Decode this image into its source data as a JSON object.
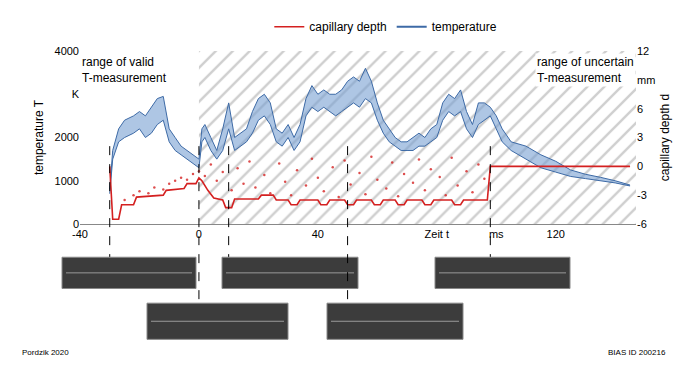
{
  "chart_data": {
    "type": "line",
    "xlim": [
      -40,
      147
    ],
    "xticks": [
      -40,
      0,
      40,
      {
        "value": 80,
        "label": "Zeit t"
      },
      {
        "value": 100,
        "label": "ms"
      },
      120
    ],
    "ylim": [
      0,
      4000
    ],
    "yticks": [
      0,
      1000,
      2000,
      {
        "value": 3000,
        "label": "K"
      },
      4000
    ],
    "y2lim": [
      -6,
      12
    ],
    "y2ticks": [
      -6,
      -3,
      0,
      3,
      6,
      {
        "value": 9,
        "label": "mm"
      },
      12
    ],
    "y_label": "temperature T",
    "y2_label": "capillary depth d",
    "grid": false,
    "legend": "top",
    "series": [
      {
        "name": "temperature",
        "color": "#3d6aa6",
        "x": [
          -30,
          -29,
          -27,
          -25,
          -22,
          -20,
          -18,
          -16,
          -14,
          -12,
          -10,
          -8,
          -6,
          -4,
          -2,
          0,
          1,
          2,
          4,
          6,
          8,
          10,
          12,
          14,
          16,
          18,
          20,
          22,
          24,
          26,
          28,
          30,
          32,
          34,
          36,
          38,
          40,
          42,
          44,
          46,
          48,
          50,
          52,
          54,
          56,
          58,
          60,
          62,
          64,
          66,
          68,
          70,
          72,
          74,
          76,
          78,
          80,
          82,
          84,
          86,
          88,
          90,
          92,
          94,
          96,
          98,
          100,
          102,
          105,
          110,
          115,
          120,
          125,
          130,
          135,
          140,
          145
        ],
        "lower": [
          700,
          1500,
          1900,
          2000,
          2100,
          2200,
          2000,
          2100,
          2300,
          2400,
          1900,
          1700,
          1600,
          1500,
          1400,
          1300,
          1900,
          2000,
          1700,
          1500,
          1700,
          2200,
          1700,
          1800,
          1900,
          2100,
          2400,
          2500,
          2300,
          1900,
          1800,
          2000,
          1700,
          1900,
          2500,
          2700,
          2600,
          2700,
          2600,
          2500,
          2600,
          2700,
          2800,
          2700,
          2900,
          2800,
          2400,
          2100,
          1900,
          1800,
          1700,
          1700,
          1700,
          1800,
          1800,
          1900,
          2000,
          2400,
          2600,
          2500,
          2600,
          2200,
          2000,
          2300,
          2400,
          2500,
          2200,
          1900,
          1700,
          1500,
          1300,
          1200,
          1100,
          1050,
          1000,
          950,
          880
        ],
        "upper": [
          800,
          1700,
          2200,
          2400,
          2500,
          2600,
          2500,
          2700,
          2900,
          2950,
          2200,
          2000,
          1800,
          1700,
          1600,
          1500,
          2200,
          2300,
          2000,
          1700,
          2200,
          2800,
          2000,
          2100,
          2200,
          2600,
          2900,
          3000,
          2800,
          2200,
          2100,
          2300,
          2000,
          2300,
          2900,
          3200,
          3000,
          3100,
          3000,
          3000,
          3100,
          3300,
          3400,
          3300,
          3600,
          3300,
          2800,
          2400,
          2200,
          2000,
          1900,
          1900,
          2000,
          2100,
          2000,
          2200,
          2300,
          2800,
          3000,
          2900,
          3100,
          2600,
          2300,
          2800,
          2800,
          2700,
          2500,
          2200,
          1900,
          1800,
          1600,
          1450,
          1250,
          1150,
          1080,
          1000,
          900
        ]
      },
      {
        "name": "capillary depth",
        "color": "#d42020",
        "axis": "y2",
        "x": [
          -30,
          -29,
          -27,
          -26,
          -22,
          -21,
          -12,
          -11,
          -5,
          -4,
          -1,
          0,
          1,
          3,
          5,
          8,
          9,
          11,
          12,
          20,
          21,
          25,
          26,
          30,
          31,
          33,
          34,
          40,
          41,
          43,
          44,
          49,
          50,
          52,
          53,
          58,
          59,
          61,
          62,
          66,
          67,
          69,
          70,
          75,
          76,
          78,
          79,
          85,
          86,
          88,
          89,
          97,
          98,
          145
        ],
        "values": [
          0,
          -5.5,
          -5.5,
          -4.0,
          -4.0,
          -3.2,
          -3.0,
          -2.5,
          -2.3,
          -1.8,
          -1.8,
          -1.2,
          -1.5,
          -2.5,
          -3.3,
          -3.5,
          -4.3,
          -4.3,
          -3.4,
          -3.4,
          -3.0,
          -3.0,
          -3.5,
          -3.5,
          -4.0,
          -4.0,
          -3.5,
          -3.5,
          -4.0,
          -4.0,
          -3.5,
          -3.5,
          -4.0,
          -4.0,
          -3.5,
          -3.5,
          -4.0,
          -4.0,
          -3.5,
          -3.5,
          -4.0,
          -4.0,
          -3.5,
          -3.5,
          -4.0,
          -4.0,
          -3.5,
          -3.5,
          -4.0,
          -4.0,
          -3.5,
          -3.5,
          0,
          0
        ],
        "scatter_x": [
          -25,
          -22,
          -20,
          -17,
          -15,
          -12,
          -10,
          -8,
          -6,
          -4,
          -2,
          0,
          2,
          4,
          6,
          8,
          11,
          13,
          15,
          17,
          19,
          22,
          24,
          27,
          29,
          31,
          33,
          36,
          38,
          40,
          42,
          45,
          47,
          49,
          51,
          54,
          56,
          58,
          60,
          63,
          65,
          67,
          69,
          72,
          74,
          76,
          78,
          81,
          83,
          85,
          87,
          90,
          92,
          94,
          96
        ],
        "scatter_values": [
          -3.5,
          -3.0,
          -2.6,
          -2.8,
          -2.2,
          -2.4,
          -1.8,
          -1.5,
          -1.2,
          -1.4,
          -0.8,
          -0.5,
          -1.0,
          0.2,
          -1.5,
          -0.6,
          -2.5,
          -0.2,
          -1.8,
          0.5,
          -2.2,
          -0.9,
          -2.8,
          0.3,
          -1.6,
          -3.0,
          -0.4,
          -2.0,
          0.8,
          -1.2,
          -2.6,
          -0.1,
          -3.2,
          0.6,
          -1.9,
          -0.7,
          -2.9,
          1.0,
          -1.4,
          -2.3,
          0.4,
          -3.1,
          -0.8,
          -1.7,
          0.7,
          -2.5,
          -0.3,
          -1.1,
          -3.0,
          0.9,
          -2.0,
          -0.5,
          -2.7,
          0.2,
          -1.3
        ]
      }
    ],
    "hatched_x": [
      0,
      147
    ],
    "annotations": [
      {
        "text": [
          "range of valid",
          "T-measurement"
        ]
      },
      {
        "text": [
          "range of uncertain",
          "T-measurement"
        ]
      }
    ],
    "snapshot_times": [
      -30,
      0,
      10,
      50,
      98
    ],
    "source": "Pordzik 2020",
    "id": "BIAS ID 200216"
  }
}
